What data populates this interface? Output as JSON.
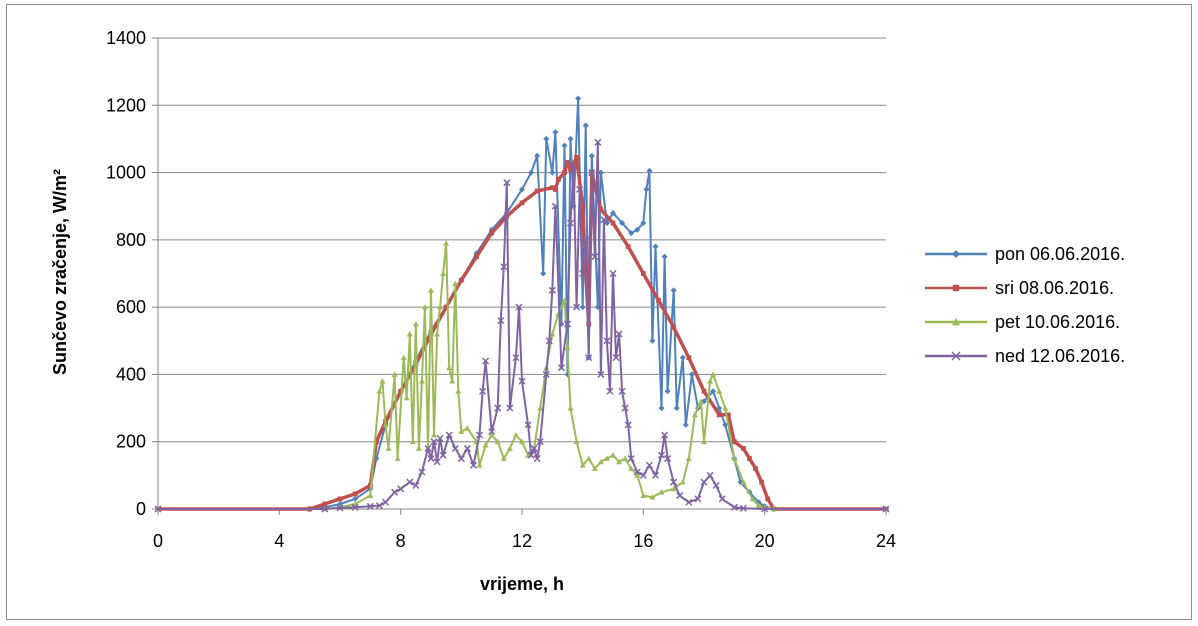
{
  "chart_data": {
    "type": "line",
    "title": "",
    "xlabel": "vrijeme, h",
    "ylabel": "Sunčevo zračenje, W/m²",
    "xlim": [
      0,
      24
    ],
    "ylim": [
      0,
      1400
    ],
    "xticks": [
      "0",
      "4",
      "8",
      "12",
      "16",
      "20",
      "24"
    ],
    "yticks": [
      "0",
      "200",
      "400",
      "600",
      "800",
      "1000",
      "1200",
      "1400"
    ],
    "grid": "horizontal",
    "legend_position": "right",
    "series": [
      {
        "name": "pon 06.06.2016.",
        "color": "#4f81bd",
        "marker": "diamond",
        "points": [
          [
            0,
            0
          ],
          [
            5,
            0
          ],
          [
            5.5,
            5
          ],
          [
            6,
            15
          ],
          [
            6.5,
            30
          ],
          [
            7,
            60
          ],
          [
            7.2,
            150
          ],
          [
            7.5,
            250
          ],
          [
            8,
            350
          ],
          [
            8.5,
            440
          ],
          [
            9,
            530
          ],
          [
            9.5,
            600
          ],
          [
            10,
            680
          ],
          [
            10.5,
            760
          ],
          [
            11,
            830
          ],
          [
            11.5,
            880
          ],
          [
            12,
            950
          ],
          [
            12.3,
            1000
          ],
          [
            12.5,
            1050
          ],
          [
            12.7,
            700
          ],
          [
            12.8,
            1100
          ],
          [
            13,
            1000
          ],
          [
            13.1,
            1120
          ],
          [
            13.3,
            550
          ],
          [
            13.4,
            1080
          ],
          [
            13.5,
            400
          ],
          [
            13.6,
            1100
          ],
          [
            13.7,
            900
          ],
          [
            13.85,
            1220
          ],
          [
            14,
            600
          ],
          [
            14.1,
            1140
          ],
          [
            14.2,
            450
          ],
          [
            14.3,
            1050
          ],
          [
            14.5,
            600
          ],
          [
            14.6,
            1000
          ],
          [
            14.8,
            850
          ],
          [
            15,
            880
          ],
          [
            15.3,
            850
          ],
          [
            15.6,
            820
          ],
          [
            15.8,
            830
          ],
          [
            16,
            850
          ],
          [
            16.1,
            950
          ],
          [
            16.2,
            1005
          ],
          [
            16.3,
            500
          ],
          [
            16.4,
            780
          ],
          [
            16.6,
            300
          ],
          [
            16.7,
            750
          ],
          [
            16.8,
            350
          ],
          [
            17,
            650
          ],
          [
            17.1,
            300
          ],
          [
            17.3,
            450
          ],
          [
            17.4,
            250
          ],
          [
            17.6,
            400
          ],
          [
            17.8,
            300
          ],
          [
            18,
            320
          ],
          [
            18.3,
            350
          ],
          [
            18.5,
            300
          ],
          [
            18.7,
            250
          ],
          [
            19,
            150
          ],
          [
            19.2,
            80
          ],
          [
            19.5,
            50
          ],
          [
            19.8,
            20
          ],
          [
            20,
            8
          ],
          [
            20.3,
            0
          ],
          [
            24,
            0
          ]
        ]
      },
      {
        "name": "sri 08.06.2016.",
        "color": "#c0504d",
        "marker": "square",
        "points": [
          [
            0,
            0
          ],
          [
            5,
            0
          ],
          [
            5.5,
            15
          ],
          [
            6,
            30
          ],
          [
            6.5,
            45
          ],
          [
            7,
            70
          ],
          [
            7.2,
            200
          ],
          [
            7.5,
            260
          ],
          [
            8,
            350
          ],
          [
            8.5,
            430
          ],
          [
            9,
            520
          ],
          [
            9.5,
            600
          ],
          [
            10,
            680
          ],
          [
            10.5,
            750
          ],
          [
            11,
            820
          ],
          [
            11.5,
            870
          ],
          [
            12,
            910
          ],
          [
            12.5,
            945
          ],
          [
            13,
            955
          ],
          [
            13.1,
            950
          ],
          [
            13.2,
            980
          ],
          [
            13.4,
            1000
          ],
          [
            13.5,
            1030
          ],
          [
            13.6,
            1010
          ],
          [
            13.8,
            1045
          ],
          [
            14,
            900
          ],
          [
            14.1,
            700
          ],
          [
            14.2,
            550
          ],
          [
            14.3,
            1000
          ],
          [
            14.4,
            960
          ],
          [
            14.6,
            890
          ],
          [
            15,
            850
          ],
          [
            15.5,
            780
          ],
          [
            16,
            700
          ],
          [
            16.5,
            620
          ],
          [
            17,
            540
          ],
          [
            17.5,
            450
          ],
          [
            18,
            350
          ],
          [
            18.5,
            280
          ],
          [
            18.8,
            280
          ],
          [
            19,
            200
          ],
          [
            19.3,
            180
          ],
          [
            19.5,
            150
          ],
          [
            19.7,
            120
          ],
          [
            19.9,
            80
          ],
          [
            20.1,
            30
          ],
          [
            20.3,
            0
          ],
          [
            24,
            0
          ]
        ]
      },
      {
        "name": "pet 10.06.2016.",
        "color": "#9bbb59",
        "marker": "triangle",
        "points": [
          [
            0,
            0
          ],
          [
            5.5,
            0
          ],
          [
            6,
            5
          ],
          [
            6.5,
            15
          ],
          [
            7,
            40
          ],
          [
            7.3,
            350
          ],
          [
            7.4,
            380
          ],
          [
            7.5,
            250
          ],
          [
            7.6,
            180
          ],
          [
            7.8,
            400
          ],
          [
            7.9,
            150
          ],
          [
            8.1,
            450
          ],
          [
            8.2,
            330
          ],
          [
            8.3,
            520
          ],
          [
            8.4,
            200
          ],
          [
            8.5,
            550
          ],
          [
            8.6,
            180
          ],
          [
            8.7,
            380
          ],
          [
            8.8,
            600
          ],
          [
            8.9,
            180
          ],
          [
            9,
            650
          ],
          [
            9.1,
            220
          ],
          [
            9.2,
            520
          ],
          [
            9.3,
            600
          ],
          [
            9.4,
            700
          ],
          [
            9.5,
            790
          ],
          [
            9.6,
            420
          ],
          [
            9.7,
            380
          ],
          [
            9.8,
            670
          ],
          [
            9.9,
            350
          ],
          [
            10,
            230
          ],
          [
            10.2,
            240
          ],
          [
            10.5,
            200
          ],
          [
            10.6,
            130
          ],
          [
            10.8,
            190
          ],
          [
            11,
            220
          ],
          [
            11.2,
            200
          ],
          [
            11.4,
            150
          ],
          [
            11.6,
            180
          ],
          [
            11.8,
            220
          ],
          [
            12,
            200
          ],
          [
            12.2,
            160
          ],
          [
            12.4,
            180
          ],
          [
            12.6,
            300
          ],
          [
            12.8,
            420
          ],
          [
            13,
            520
          ],
          [
            13.2,
            580
          ],
          [
            13.4,
            620
          ],
          [
            13.5,
            480
          ],
          [
            13.6,
            300
          ],
          [
            13.8,
            200
          ],
          [
            14,
            130
          ],
          [
            14.2,
            150
          ],
          [
            14.4,
            120
          ],
          [
            14.6,
            140
          ],
          [
            14.8,
            150
          ],
          [
            15,
            160
          ],
          [
            15.2,
            140
          ],
          [
            15.4,
            150
          ],
          [
            15.6,
            120
          ],
          [
            15.8,
            100
          ],
          [
            16,
            40
          ],
          [
            16.3,
            35
          ],
          [
            16.6,
            50
          ],
          [
            17,
            60
          ],
          [
            17.3,
            80
          ],
          [
            17.5,
            150
          ],
          [
            17.7,
            280
          ],
          [
            17.9,
            320
          ],
          [
            18,
            200
          ],
          [
            18.2,
            380
          ],
          [
            18.3,
            400
          ],
          [
            18.5,
            350
          ],
          [
            18.7,
            300
          ],
          [
            19,
            150
          ],
          [
            19.3,
            80
          ],
          [
            19.6,
            30
          ],
          [
            19.8,
            10
          ],
          [
            20,
            5
          ],
          [
            20.3,
            0
          ],
          [
            24,
            0
          ]
        ]
      },
      {
        "name": "ned 12.06.2016.",
        "color": "#8064a2",
        "marker": "x",
        "points": [
          [
            0,
            0
          ],
          [
            5.5,
            0
          ],
          [
            6,
            3
          ],
          [
            6.5,
            5
          ],
          [
            7,
            8
          ],
          [
            7.3,
            10
          ],
          [
            7.5,
            20
          ],
          [
            7.8,
            50
          ],
          [
            8,
            60
          ],
          [
            8.3,
            80
          ],
          [
            8.5,
            70
          ],
          [
            8.7,
            110
          ],
          [
            8.9,
            180
          ],
          [
            9,
            150
          ],
          [
            9.1,
            200
          ],
          [
            9.2,
            140
          ],
          [
            9.3,
            210
          ],
          [
            9.4,
            160
          ],
          [
            9.6,
            220
          ],
          [
            9.8,
            180
          ],
          [
            10,
            150
          ],
          [
            10.2,
            180
          ],
          [
            10.4,
            130
          ],
          [
            10.6,
            220
          ],
          [
            10.7,
            350
          ],
          [
            10.8,
            440
          ],
          [
            11,
            230
          ],
          [
            11.2,
            300
          ],
          [
            11.3,
            560
          ],
          [
            11.4,
            720
          ],
          [
            11.5,
            970
          ],
          [
            11.6,
            300
          ],
          [
            11.8,
            450
          ],
          [
            11.9,
            600
          ],
          [
            12,
            380
          ],
          [
            12.2,
            250
          ],
          [
            12.3,
            160
          ],
          [
            12.4,
            180
          ],
          [
            12.5,
            150
          ],
          [
            12.6,
            200
          ],
          [
            12.8,
            400
          ],
          [
            12.9,
            500
          ],
          [
            13,
            650
          ],
          [
            13.1,
            900
          ],
          [
            13.3,
            420
          ],
          [
            13.5,
            550
          ],
          [
            13.6,
            850
          ],
          [
            13.7,
            1020
          ],
          [
            13.8,
            600
          ],
          [
            13.9,
            950
          ],
          [
            14,
            700
          ],
          [
            14.1,
            800
          ],
          [
            14.2,
            450
          ],
          [
            14.3,
            1000
          ],
          [
            14.4,
            750
          ],
          [
            14.5,
            1090
          ],
          [
            14.6,
            400
          ],
          [
            14.7,
            860
          ],
          [
            14.8,
            500
          ],
          [
            14.9,
            350
          ],
          [
            15,
            700
          ],
          [
            15.1,
            450
          ],
          [
            15.2,
            520
          ],
          [
            15.3,
            350
          ],
          [
            15.4,
            300
          ],
          [
            15.5,
            250
          ],
          [
            15.6,
            150
          ],
          [
            15.8,
            110
          ],
          [
            16,
            100
          ],
          [
            16.2,
            130
          ],
          [
            16.4,
            100
          ],
          [
            16.6,
            160
          ],
          [
            16.7,
            220
          ],
          [
            16.8,
            150
          ],
          [
            17,
            80
          ],
          [
            17.2,
            40
          ],
          [
            17.5,
            20
          ],
          [
            17.8,
            30
          ],
          [
            18,
            80
          ],
          [
            18.2,
            100
          ],
          [
            18.4,
            70
          ],
          [
            18.6,
            30
          ],
          [
            19,
            5
          ],
          [
            19.3,
            2
          ],
          [
            20,
            0
          ],
          [
            24,
            0
          ]
        ]
      }
    ]
  }
}
